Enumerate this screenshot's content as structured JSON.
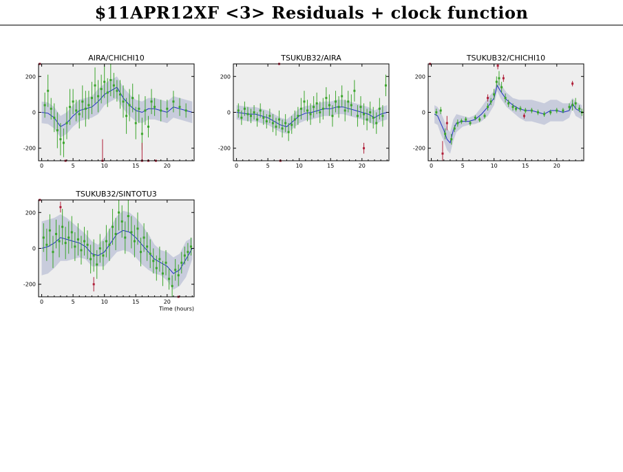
{
  "page": {
    "title": "$11APR12XF <3> Residuals + clock function",
    "xlabel": "Time (hours)"
  },
  "style": {
    "panel_bg": "#eeeeee",
    "band_color": "#c8ccdc",
    "clock_line_color": "#1f2fbf",
    "good_point_color": "#3aa52a",
    "flagged_point_color": "#b0203a"
  },
  "chart_data": [
    {
      "type": "scatter",
      "title": "AIRA/CHICHI10",
      "xlim": [
        -0.5,
        24.3
      ],
      "ylim": [
        -270,
        270
      ],
      "xticks": [
        0,
        5,
        10,
        15,
        20
      ],
      "yticks": [
        -200,
        0,
        200
      ],
      "clock_function": {
        "x": [
          0,
          1,
          2,
          3,
          4,
          5,
          6,
          7,
          8,
          9,
          10,
          11,
          12,
          13,
          14,
          15,
          16,
          17,
          18,
          19,
          20,
          21,
          22,
          23,
          24
        ],
        "y": [
          0,
          -5,
          -30,
          -80,
          -60,
          -20,
          10,
          20,
          30,
          60,
          100,
          120,
          140,
          80,
          40,
          10,
          0,
          20,
          20,
          10,
          0,
          30,
          20,
          10,
          0
        ]
      },
      "band_halfwidth": [
        60,
        60,
        60,
        60,
        60,
        60,
        60,
        60,
        60,
        70,
        60,
        60,
        60,
        60,
        60,
        60,
        60,
        60,
        60,
        60,
        60,
        60,
        60,
        60,
        60
      ],
      "good_points": {
        "x": [
          0.5,
          1.0,
          1.5,
          2.0,
          2.5,
          3.0,
          3.5,
          4.0,
          4.5,
          5.0,
          5.5,
          6.0,
          6.5,
          7.0,
          7.5,
          8.0,
          8.5,
          9.0,
          9.5,
          10.0,
          10.5,
          11.0,
          11.5,
          12.0,
          12.5,
          13.0,
          13.5,
          14.0,
          14.5,
          15.0,
          15.5,
          16.0,
          16.5,
          17.0,
          17.5,
          18.0,
          19.0,
          20.0,
          21.0,
          22.0,
          23.0
        ],
        "y": [
          40,
          120,
          20,
          -30,
          -100,
          -150,
          -170,
          -60,
          30,
          60,
          10,
          -10,
          60,
          20,
          40,
          80,
          150,
          90,
          130,
          170,
          110,
          180,
          150,
          120,
          100,
          60,
          -20,
          40,
          80,
          -60,
          20,
          -120,
          10,
          -80,
          60,
          30,
          10,
          20,
          60,
          30,
          10
        ],
        "err": [
          70,
          90,
          60,
          80,
          100,
          90,
          80,
          90,
          100,
          70,
          60,
          80,
          90,
          100,
          80,
          90,
          100,
          90,
          80,
          90,
          80,
          90,
          70,
          60,
          80,
          90,
          100,
          90,
          80,
          90,
          80,
          90,
          80,
          60,
          70,
          50,
          60,
          50,
          60,
          50,
          40
        ]
      },
      "flagged_points": {
        "x": [
          -0.3,
          3.8,
          9.7,
          16.0,
          17.0,
          18.2
        ],
        "y": [
          270,
          -270,
          -270,
          -270,
          -270,
          -270
        ],
        "err": [
          0,
          0,
          120,
          100,
          0,
          0
        ]
      }
    },
    {
      "type": "scatter",
      "title": "TSUKUB32/AIRA",
      "xlim": [
        -0.5,
        24.3
      ],
      "ylim": [
        -270,
        270
      ],
      "xticks": [
        0,
        5,
        10,
        15,
        20
      ],
      "yticks": [
        -200,
        0,
        200
      ],
      "clock_function": {
        "x": [
          0,
          1,
          2,
          3,
          4,
          5,
          6,
          7,
          8,
          9,
          10,
          11,
          12,
          13,
          14,
          15,
          16,
          17,
          18,
          19,
          20,
          21,
          22,
          23,
          24
        ],
        "y": [
          0,
          -5,
          -10,
          -10,
          -20,
          -30,
          -50,
          -70,
          -80,
          -50,
          -20,
          -5,
          0,
          10,
          20,
          20,
          30,
          30,
          20,
          10,
          0,
          -10,
          -30,
          -10,
          0
        ]
      },
      "band_halfwidth": [
        40,
        40,
        40,
        40,
        40,
        40,
        40,
        40,
        40,
        40,
        40,
        40,
        40,
        40,
        40,
        40,
        40,
        40,
        40,
        40,
        40,
        40,
        40,
        40,
        40
      ],
      "good_points": {
        "x": [
          0.3,
          0.8,
          1.3,
          1.8,
          2.3,
          2.8,
          3.3,
          3.8,
          4.3,
          4.8,
          5.3,
          5.8,
          6.3,
          6.8,
          7.3,
          7.8,
          8.3,
          8.8,
          9.3,
          9.8,
          10.3,
          10.8,
          11.3,
          11.8,
          12.3,
          12.8,
          13.3,
          13.8,
          14.3,
          14.8,
          15.3,
          15.8,
          16.3,
          16.8,
          17.3,
          17.8,
          18.3,
          18.8,
          19.3,
          19.8,
          20.3,
          20.8,
          21.3,
          21.8,
          22.3,
          22.8,
          23.3,
          23.8
        ],
        "y": [
          10,
          -30,
          20,
          -10,
          -20,
          0,
          -40,
          10,
          -30,
          -50,
          -20,
          -60,
          -80,
          -40,
          -90,
          -60,
          -110,
          -70,
          -40,
          -20,
          20,
          60,
          10,
          -10,
          30,
          50,
          0,
          20,
          80,
          40,
          -20,
          60,
          30,
          90,
          10,
          60,
          40,
          120,
          -20,
          30,
          -10,
          -40,
          0,
          -30,
          -60,
          20,
          -20,
          150
        ],
        "err": [
          40,
          40,
          40,
          40,
          40,
          40,
          40,
          40,
          40,
          40,
          40,
          50,
          50,
          50,
          50,
          50,
          50,
          50,
          50,
          50,
          60,
          60,
          60,
          60,
          60,
          60,
          60,
          60,
          60,
          60,
          60,
          60,
          60,
          60,
          60,
          60,
          60,
          60,
          60,
          60,
          60,
          60,
          60,
          60,
          60,
          60,
          60,
          60
        ]
      },
      "flagged_points": {
        "x": [
          6.8,
          7.0,
          20.3
        ],
        "y": [
          270,
          -270,
          -200
        ],
        "err": [
          0,
          0,
          30
        ]
      }
    },
    {
      "type": "scatter",
      "title": "TSUKUB32/CHICHI10",
      "xlim": [
        -0.5,
        24.3
      ],
      "ylim": [
        -270,
        270
      ],
      "xticks": [
        0,
        5,
        10,
        15,
        20
      ],
      "yticks": [
        -200,
        0,
        200
      ],
      "clock_function": {
        "x": [
          0.5,
          1,
          1.5,
          2,
          2.5,
          3,
          3.5,
          4,
          5,
          6,
          7,
          8,
          9,
          10,
          10.5,
          11,
          12,
          13,
          14,
          15,
          16,
          17,
          18,
          19,
          20,
          21,
          22,
          22.5,
          23,
          24
        ],
        "y": [
          -10,
          -20,
          -60,
          -100,
          -150,
          -170,
          -100,
          -60,
          -50,
          -50,
          -40,
          -10,
          30,
          80,
          150,
          120,
          70,
          40,
          20,
          10,
          10,
          0,
          -10,
          10,
          10,
          0,
          10,
          50,
          20,
          0
        ]
      },
      "band_halfwidth": [
        50,
        50,
        60,
        60,
        60,
        60,
        60,
        50,
        30,
        20,
        25,
        40,
        50,
        40,
        30,
        40,
        40,
        40,
        50,
        60,
        60,
        60,
        60,
        60,
        60,
        50,
        40,
        30,
        40,
        40
      ],
      "good_points": {
        "x": [
          0.8,
          1.5,
          2.2,
          3.2,
          3.7,
          4.2,
          4.8,
          5.5,
          6.2,
          7.0,
          7.7,
          8.5,
          9.0,
          9.5,
          10.0,
          10.4,
          10.8,
          11.2,
          11.8,
          12.3,
          13.0,
          13.5,
          14.2,
          15.0,
          16.0,
          17.0,
          18.0,
          19.0,
          20.0,
          21.0,
          22.0,
          22.5,
          23.0,
          23.6,
          24.0
        ],
        "y": [
          0,
          10,
          -120,
          -150,
          -90,
          -60,
          -50,
          -40,
          -60,
          -30,
          -40,
          -20,
          30,
          60,
          100,
          170,
          190,
          140,
          80,
          50,
          30,
          20,
          20,
          10,
          10,
          0,
          -10,
          0,
          10,
          10,
          30,
          40,
          50,
          20,
          0
        ],
        "err": [
          20,
          20,
          30,
          30,
          20,
          20,
          15,
          15,
          15,
          15,
          15,
          15,
          20,
          20,
          30,
          30,
          40,
          30,
          25,
          20,
          20,
          15,
          15,
          15,
          15,
          15,
          15,
          15,
          15,
          15,
          20,
          30,
          30,
          20,
          20
        ]
      },
      "flagged_points": {
        "x": [
          -0.2,
          1.8,
          2.5,
          9.0,
          10.6,
          11.5,
          14.8,
          22.5
        ],
        "y": [
          270,
          -230,
          -60,
          80,
          260,
          190,
          -20,
          160
        ],
        "err": [
          0,
          70,
          40,
          20,
          20,
          20,
          15,
          15
        ]
      }
    },
    {
      "type": "scatter",
      "title": "TSUKUB32/SINTOTU3",
      "xlabel": "Time (hours)",
      "xlim": [
        -0.5,
        24.3
      ],
      "ylim": [
        -270,
        270
      ],
      "xticks": [
        0,
        5,
        10,
        15,
        20
      ],
      "yticks": [
        -200,
        0,
        200
      ],
      "clock_function": {
        "x": [
          0,
          1,
          2,
          3,
          4,
          5,
          6,
          7,
          8,
          9,
          10,
          11,
          12,
          13,
          14,
          15,
          16,
          17,
          18,
          19,
          20,
          21,
          22,
          23,
          24
        ],
        "y": [
          0,
          10,
          30,
          60,
          50,
          40,
          30,
          10,
          -30,
          -40,
          -20,
          30,
          80,
          100,
          90,
          60,
          20,
          -20,
          -60,
          -80,
          -100,
          -140,
          -120,
          -60,
          0
        ]
      },
      "band_halfwidth": [
        150,
        150,
        140,
        130,
        120,
        100,
        80,
        70,
        70,
        60,
        80,
        90,
        100,
        110,
        110,
        110,
        110,
        100,
        80,
        70,
        80,
        90,
        90,
        100,
        60
      ],
      "good_points": {
        "x": [
          0.3,
          0.8,
          1.3,
          1.8,
          2.3,
          2.8,
          3.3,
          3.8,
          4.3,
          4.8,
          5.3,
          5.8,
          6.3,
          6.8,
          7.3,
          7.8,
          8.3,
          8.8,
          9.3,
          9.8,
          10.3,
          10.8,
          11.3,
          11.8,
          12.3,
          12.8,
          13.3,
          13.8,
          14.3,
          14.8,
          15.3,
          15.8,
          16.3,
          16.8,
          17.3,
          17.8,
          18.3,
          18.8,
          19.3,
          19.8,
          20.3,
          20.8,
          21.3,
          21.8,
          22.3,
          22.8,
          23.3,
          23.8
        ],
        "y": [
          60,
          20,
          100,
          -20,
          80,
          40,
          120,
          30,
          60,
          90,
          10,
          50,
          -10,
          40,
          20,
          -60,
          -40,
          -90,
          0,
          -40,
          40,
          20,
          120,
          80,
          200,
          150,
          60,
          180,
          90,
          40,
          110,
          -20,
          60,
          10,
          -30,
          -70,
          -110,
          -60,
          -140,
          -80,
          -170,
          -210,
          -120,
          -150,
          -80,
          -40,
          -20,
          10
        ],
        "err": [
          80,
          90,
          90,
          90,
          80,
          90,
          100,
          90,
          90,
          90,
          80,
          90,
          80,
          80,
          80,
          80,
          90,
          80,
          80,
          80,
          90,
          90,
          100,
          90,
          100,
          90,
          90,
          90,
          90,
          90,
          90,
          80,
          80,
          80,
          80,
          70,
          70,
          70,
          70,
          70,
          60,
          60,
          60,
          60,
          60,
          50,
          50,
          50
        ]
      },
      "flagged_points": {
        "x": [
          -0.3,
          3.0,
          8.3,
          21.8
        ],
        "y": [
          270,
          230,
          -200,
          -270
        ],
        "err": [
          0,
          30,
          40,
          0
        ]
      }
    }
  ]
}
